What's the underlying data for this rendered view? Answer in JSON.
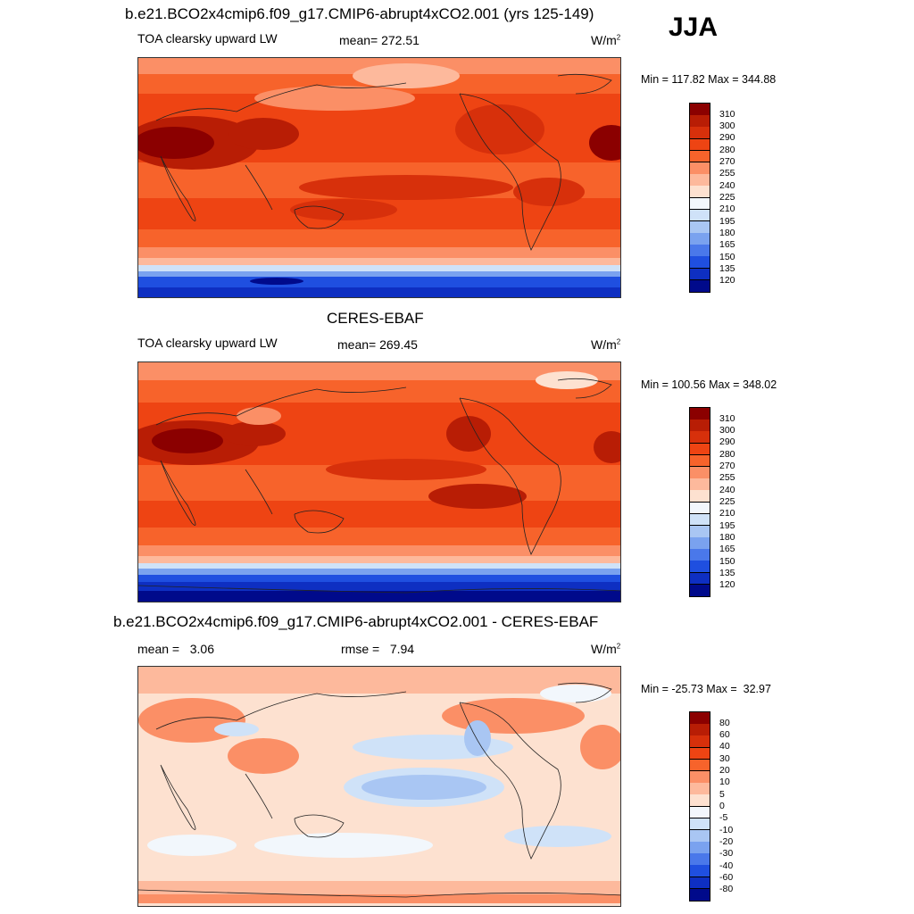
{
  "season": "JJA",
  "panels": [
    {
      "title": "b.e21.BCO2x4cmip6.f09_g17.CMIP6-abrupt4xCO2.001 (yrs 125-149)",
      "left_label": "TOA clearsky upward LW",
      "center_label": "mean= 272.51",
      "units": "W/m",
      "units_sup": "2",
      "minmax": "Min = 117.82 Max = 344.88"
    },
    {
      "title": "CERES-EBAF",
      "left_label": "TOA clearsky upward LW",
      "center_label": "mean= 269.45",
      "units": "W/m",
      "units_sup": "2",
      "minmax": "Min = 100.56 Max = 348.02"
    },
    {
      "title": "b.e21.BCO2x4cmip6.f09_g17.CMIP6-abrupt4xCO2.001 - CERES-EBAF",
      "left_label": "mean =   3.06",
      "center_label": "rmse =   7.94",
      "units": "W/m",
      "units_sup": "2",
      "minmax": "Min = -25.73 Max =  32.97"
    }
  ],
  "colorbars": {
    "field": {
      "labels": [
        "310",
        "300",
        "290",
        "280",
        "270",
        "255",
        "240",
        "225",
        "210",
        "195",
        "180",
        "165",
        "150",
        "135",
        "120"
      ],
      "colors": [
        "#8b0000",
        "#b81d05",
        "#d7300b",
        "#ee4413",
        "#f7632b",
        "#fb8f66",
        "#fdb99c",
        "#fde1d0",
        "#f2f7fc",
        "#cfe2f8",
        "#a9c6f3",
        "#7aa2ef",
        "#4a78ea",
        "#1f4fe0",
        "#0e2fc2",
        "#000a8b"
      ]
    },
    "diff": {
      "labels": [
        "80",
        "60",
        "40",
        "30",
        "20",
        "10",
        "5",
        "0",
        "-5",
        "-10",
        "-20",
        "-30",
        "-40",
        "-60",
        "-80"
      ],
      "colors": [
        "#8b0000",
        "#b81d05",
        "#d7300b",
        "#ee4413",
        "#f7632b",
        "#fb8f66",
        "#fdb99c",
        "#fde1d0",
        "#f2f7fc",
        "#cfe2f8",
        "#a9c6f3",
        "#7aa2ef",
        "#4a78ea",
        "#1f4fe0",
        "#0e2fc2",
        "#000a8b"
      ]
    }
  }
}
